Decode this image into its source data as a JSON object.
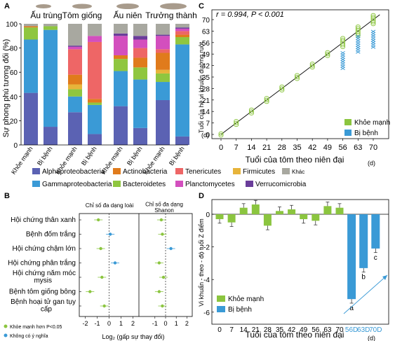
{
  "panel_letters": {
    "a": "A",
    "b": "B",
    "c": "C",
    "d": "D"
  },
  "colors": {
    "alpha": "#5b62b3",
    "gamma": "#3a9ad6",
    "actino": "#e07b1c",
    "bactero": "#8fc63f",
    "teneri": "#ee6666",
    "plancto": "#d34fbe",
    "firmi": "#e7b43a",
    "verruco": "#6a3d9a",
    "other": "#a8a8a0",
    "healthy": "#8bc53f",
    "sick": "#3a9ad6"
  },
  "panel_a": {
    "stage_labels": [
      "Ấu trùng",
      "Tôm giống",
      "Ấu niên",
      "Trưởng thành"
    ],
    "ylabel": "Sự phong phú tương đối (%)",
    "yticks": [
      "0",
      "20",
      "40",
      "60",
      "80",
      "100"
    ],
    "bar_labels": [
      "Khỏe mạnh",
      "Bị bệnh",
      "Khỏe mạnh",
      "Bị bệnh",
      "Khỏe mạnh",
      "Bị bệnh",
      "Khỏe mạnh",
      "Bị bệnh"
    ],
    "legend": [
      "Alphaproteobacteria",
      "Actinobacteria",
      "Tenericutes",
      "Firmicutes",
      "Khác",
      "Gammaproteobacteria",
      "Bacteroidetes",
      "Planctomycetes",
      "Verrucomicrobia"
    ]
  },
  "panel_b": {
    "col1_title": "Chỉ số đa dạng loài",
    "col2_title": "Chỉ số đa dạng Shanon",
    "rows": [
      "Hội chứng thân xanh",
      "Bệnh đốm trắng",
      "Hội chứng chậm lớn",
      "Hội chứng phân trắng",
      "Hội chứng năm móc mysis",
      "Bệnh tôm giống bông",
      "Bệnh hoại tử gan tụy cấp"
    ],
    "xticks": [
      "-2",
      "-1",
      "0",
      "1",
      "2"
    ],
    "xlabel": "Log₂ (gấp sự thay đổi)",
    "legend_sig": "Khỏe mạnh hơn P<0.05",
    "legend_ns": "Không có ý nghĩa"
  },
  "panel_c": {
    "annotation": "r = 0.994, P < 0.001",
    "ylabel": "Tuổi của hệ vi khuẩn đường ruột",
    "yunit": "(d)",
    "xlabel": "Tuổi của tôm theo niên đại",
    "xunit": "(d)",
    "xticks": [
      "0",
      "7",
      "14",
      "21",
      "28",
      "35",
      "42",
      "49",
      "56",
      "63",
      "70"
    ],
    "yticks": [
      "0",
      "7",
      "14",
      "21",
      "28",
      "35",
      "42",
      "49",
      "56",
      "63",
      "70"
    ],
    "legend_healthy": "Khỏe mạnh",
    "legend_sick": "Bị bệnh"
  },
  "panel_d": {
    "ylabel": "Vi khuẩn - theo - độ tuổi Z điểm",
    "xlabel": "Tuổi của tôm theo niên đại",
    "xunit": "(d)",
    "yticks": [
      "0",
      "-2",
      "-4",
      "-6"
    ],
    "xticks": [
      "0",
      "7",
      "14",
      "21",
      "28",
      "35",
      "42",
      "49",
      "56",
      "63",
      "70",
      "56D",
      "63D",
      "70D"
    ],
    "sig_letters": [
      "a",
      "b",
      "c"
    ],
    "legend_healthy": "Khỏe mạnh",
    "legend_sick": "Bị bệnh"
  },
  "chart_data": [
    {
      "type": "bar",
      "panel": "A",
      "stacked": true,
      "categories": [
        "Ấu trùng Khỏe mạnh",
        "Ấu trùng Bị bệnh",
        "Tôm giống Khỏe mạnh",
        "Tôm giống Bị bệnh",
        "Ấu niên Khỏe mạnh",
        "Ấu niên Bị bệnh",
        "Trưởng thành Khỏe mạnh",
        "Trưởng thành Bị bệnh"
      ],
      "series": [
        {
          "name": "Alphaproteobacteria",
          "values": [
            43,
            15,
            27,
            9,
            32,
            14,
            37,
            7
          ]
        },
        {
          "name": "Gammaproteobacteria",
          "values": [
            44,
            80,
            13,
            24,
            29,
            40,
            15,
            76
          ]
        },
        {
          "name": "Bacteroidetes",
          "values": [
            10,
            3,
            6,
            2,
            10,
            10,
            7,
            6
          ]
        },
        {
          "name": "Firmicutes",
          "values": [
            0,
            0,
            4,
            0,
            0,
            0,
            3,
            0
          ]
        },
        {
          "name": "Actinobacteria",
          "values": [
            1,
            0,
            8,
            3,
            3,
            8,
            14,
            2
          ]
        },
        {
          "name": "Tenericutes",
          "values": [
            0,
            0,
            21,
            47,
            0,
            8,
            3,
            3
          ]
        },
        {
          "name": "Planctomycetes",
          "values": [
            0,
            0,
            2,
            5,
            16,
            7,
            11,
            2
          ]
        },
        {
          "name": "Verrucomicrobia",
          "values": [
            0,
            0,
            1,
            0,
            2,
            3,
            1,
            1
          ]
        },
        {
          "name": "Khác",
          "values": [
            2,
            2,
            18,
            10,
            8,
            10,
            9,
            3
          ]
        }
      ],
      "ylim": [
        0,
        100
      ]
    },
    {
      "type": "scatter",
      "panel": "B",
      "rows": [
        "Hội chứng thân xanh",
        "Bệnh đốm trắng",
        "Hội chứng chậm lớn",
        "Hội chứng phân trắng",
        "Hội chứng năm móc mysis",
        "Bệnh tôm giống bông",
        "Bệnh hoại tử gan tụy cấp"
      ],
      "series": [
        {
          "name": "Chỉ số đa dạng loài",
          "values": [
            -0.9,
            0.1,
            -0.7,
            0.5,
            -0.6,
            -1.6,
            -0.4
          ],
          "significant": [
            true,
            false,
            true,
            false,
            true,
            true,
            true
          ]
        },
        {
          "name": "Chỉ số đa dạng Shanon",
          "values": [
            -0.4,
            -0.3,
            0.5,
            -0.6,
            -0.2,
            -0.6,
            -0.3
          ],
          "significant": [
            true,
            true,
            false,
            true,
            true,
            true,
            true
          ]
        }
      ],
      "xlim": [
        -2.5,
        2.5
      ]
    },
    {
      "type": "scatter",
      "panel": "C",
      "x": [
        0,
        7,
        14,
        21,
        28,
        35,
        42,
        49,
        56,
        63,
        70
      ],
      "series": [
        {
          "name": "Khỏe mạnh",
          "values": [
            0,
            7,
            14,
            21,
            28,
            35,
            42,
            49,
            56,
            63,
            70
          ]
        },
        {
          "name": "Bị bệnh",
          "x": [
            56,
            63,
            70
          ],
          "values": [
            45,
            55,
            58
          ]
        }
      ],
      "xlim": [
        0,
        73
      ],
      "ylim": [
        0,
        77
      ]
    },
    {
      "type": "bar",
      "panel": "D",
      "categories": [
        "0",
        "7",
        "14",
        "21",
        "28",
        "35",
        "42",
        "49",
        "56",
        "63",
        "70",
        "56D",
        "63D",
        "70D"
      ],
      "series": [
        {
          "name": "Khỏe mạnh",
          "values": [
            -0.3,
            -0.5,
            0.4,
            0.6,
            -0.7,
            0.2,
            0.3,
            -0.3,
            -0.4,
            0.5,
            0.4,
            null,
            null,
            null
          ]
        },
        {
          "name": "Bị bệnh",
          "values": [
            null,
            null,
            null,
            null,
            null,
            null,
            null,
            null,
            null,
            null,
            null,
            -5.2,
            -3.3,
            -2.1
          ]
        }
      ],
      "ylim": [
        -6.5,
        1
      ]
    }
  ]
}
